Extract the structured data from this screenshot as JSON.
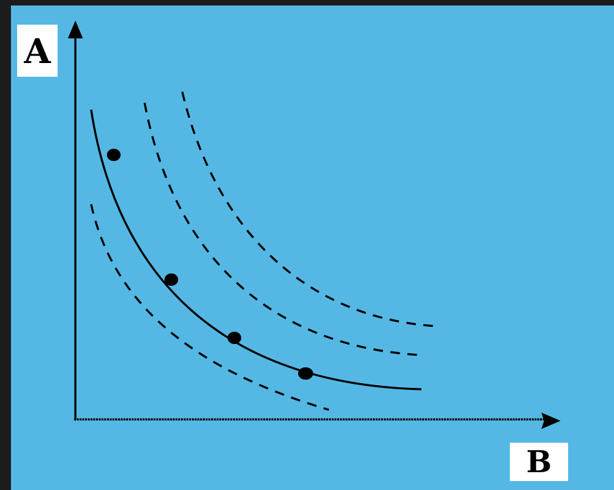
{
  "diagram": {
    "y_axis_label": "A",
    "x_axis_label": "B",
    "colors": {
      "frame": "#1c1c1c",
      "background": "#55b8e4",
      "ink": "#000000",
      "label_box": "#ffffff"
    },
    "curves": [
      {
        "id": "curve-dashed-inner",
        "style": "dashed"
      },
      {
        "id": "curve-solid",
        "style": "solid"
      },
      {
        "id": "curve-dashed-middle",
        "style": "dashed"
      },
      {
        "id": "curve-dashed-outer",
        "style": "dashed"
      }
    ],
    "points_on_solid_curve": 4
  }
}
